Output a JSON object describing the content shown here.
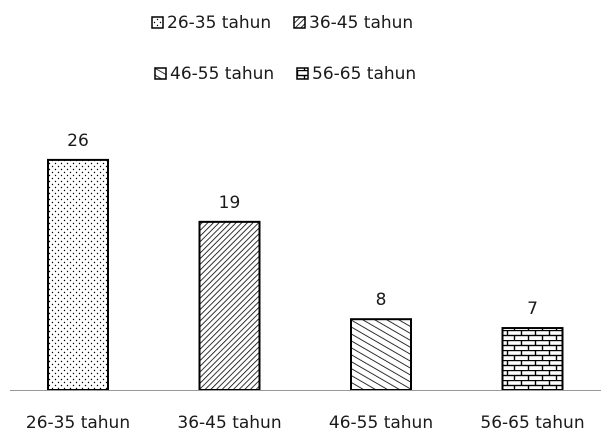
{
  "chart_data": {
    "type": "bar",
    "categories": [
      "26-35 tahun",
      "36-45 tahun",
      "46-55 tahun",
      "56-65 tahun"
    ],
    "values": [
      26,
      19,
      8,
      7
    ],
    "ylim": [
      0,
      30
    ],
    "grid": false,
    "legend_position": "top",
    "legend": [
      "26-35 tahun",
      "36-45 tahun",
      "46-55 tahun",
      "56-65 tahun"
    ],
    "patterns": [
      "dots",
      "diagonal-dense",
      "diagonal-stripes",
      "brick"
    ],
    "colors": {
      "bar_stroke": "#000000",
      "bar_fill": "#ffffff",
      "pattern": "#000000",
      "axis": "#999999"
    }
  }
}
